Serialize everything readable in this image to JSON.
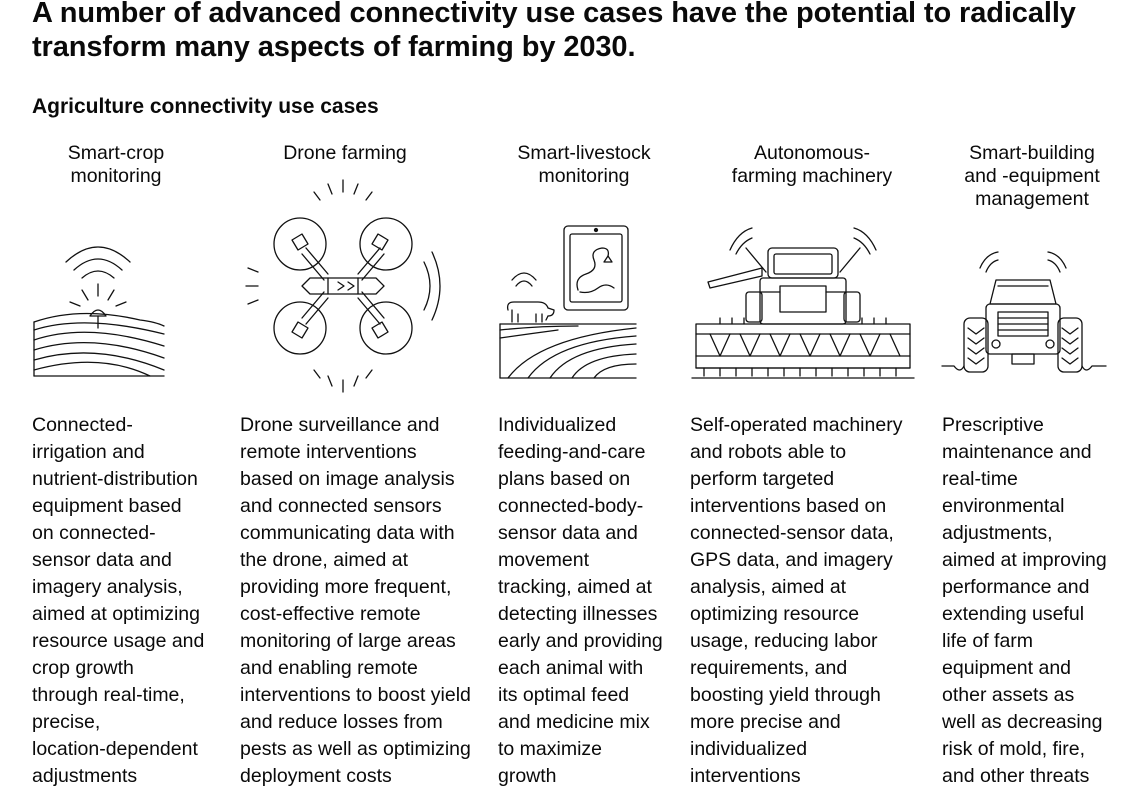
{
  "title": "A number of advanced connectivity use cases have the potential to radically transform many aspects of farming by 2030.",
  "subtitle": "Agriculture connectivity use cases",
  "use_cases": [
    {
      "heading": "Smart-crop\nmonitoring",
      "icon": "smart-crop-monitoring-icon",
      "description": "Connected-\nirrigation and\nnutrient-distribution\nequipment based\non connected-\nsensor data and\nimagery analysis,\naimed at optimizing\nresource usage and\ncrop growth\nthrough real-time,\nprecise,\nlocation-dependent\nadjustments"
    },
    {
      "heading": "Drone farming",
      "icon": "drone-farming-icon",
      "description": "Drone surveillance and\nremote interventions\nbased on image analysis\nand connected sensors\ncommunicating data with\nthe drone, aimed at\nproviding more frequent,\ncost-effective remote\nmonitoring of large areas\nand enabling remote\ninterventions to boost yield\nand reduce losses from\npests as well as optimizing\ndeployment costs"
    },
    {
      "heading": "Smart-livestock\nmonitoring",
      "icon": "smart-livestock-monitoring-icon",
      "description": "Individualized\nfeeding-and-care\nplans based on\nconnected-body-\nsensor data and\nmovement\ntracking, aimed at\ndetecting illnesses\nearly and providing\neach animal with\nits optimal feed\nand medicine mix\nto maximize\ngrowth"
    },
    {
      "heading": "Autonomous-\nfarming machinery",
      "icon": "autonomous-farming-machinery-icon",
      "description": "Self-operated machinery\nand robots able to\nperform targeted\ninterventions based on\nconnected-sensor data,\nGPS data, and imagery\nanalysis, aimed at\noptimizing resource\nusage, reducing labor\nrequirements, and\nboosting yield through\nmore precise and\nindividualized\ninterventions"
    },
    {
      "heading": "Smart-building\nand -equipment\nmanagement",
      "icon": "smart-building-equipment-management-icon",
      "description": "Prescriptive\nmaintenance and\nreal-time\nenvironmental\nadjustments,\naimed at improving\nperformance and\nextending useful\nlife of farm\nequipment and\nother assets as\nwell as decreasing\nrisk of mold, fire,\nand other threats"
    }
  ]
}
